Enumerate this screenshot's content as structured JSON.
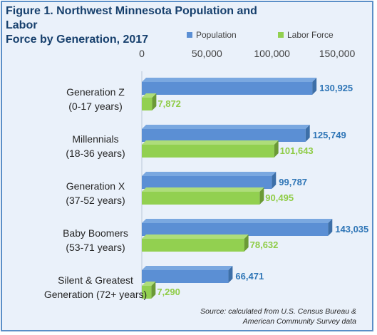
{
  "figure": {
    "title_line1": "Figure 1. Northwest Minnesota Population and Labor",
    "title_line2": "Force by Generation, 2017",
    "source_line1": "Source: calculated from U.S. Census Bureau &",
    "source_line2": "American Community Survey data"
  },
  "colors": {
    "population": "#5b8fd4",
    "population_dark": "#3d6fa8",
    "labor_force": "#92d050",
    "labor_force_dark": "#6b9a36",
    "population_label": "#2e75b6",
    "labor_force_label": "#8fcc46",
    "frame_border": "#5b8fc7",
    "background": "#eaf1fa"
  },
  "chart_data": {
    "type": "bar",
    "orientation": "horizontal",
    "categories": [
      [
        "Generation Z",
        "(0-17 years)"
      ],
      [
        "Millennials",
        "(18-36 years)"
      ],
      [
        "Generation X",
        "(37-52 years)"
      ],
      [
        "Baby Boomers",
        "(53-71 years)"
      ],
      [
        "Silent & Greatest",
        "Generation (72+ years)"
      ]
    ],
    "series": [
      {
        "name": "Population",
        "values": [
          130925,
          125749,
          99787,
          143035,
          66471
        ]
      },
      {
        "name": "Labor Force",
        "values": [
          7872,
          101643,
          90495,
          78632,
          7290
        ]
      }
    ],
    "value_labels": [
      [
        "130,925",
        "125,749",
        "99,787",
        "143,035",
        "66,471"
      ],
      [
        "7,872",
        "101,643",
        "90,495",
        "78,632",
        "7,290"
      ]
    ],
    "x_ticks": [
      0,
      50000,
      100000,
      150000
    ],
    "x_tick_labels": [
      "0",
      "50,000",
      "100,000",
      "150,000"
    ],
    "xlim": [
      0,
      150000
    ],
    "axis_position": "top",
    "legend_position": "top-right",
    "grid": false,
    "style": "3d"
  }
}
